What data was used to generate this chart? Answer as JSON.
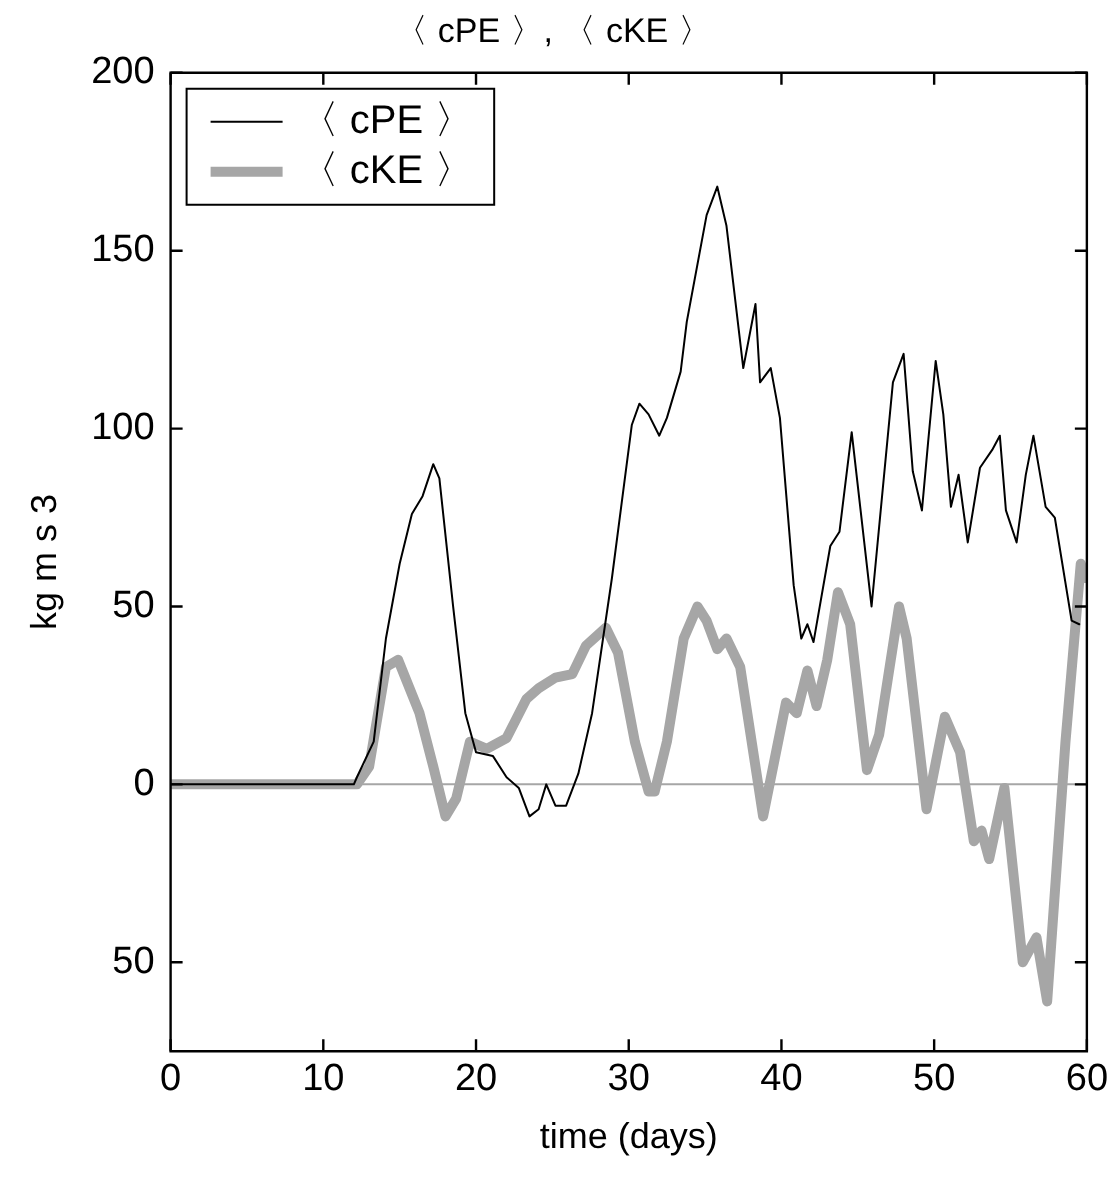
{
  "chart_data": {
    "type": "line",
    "title": "〈 cPE 〉, 〈 cKE 〉",
    "xlabel": "time (days)",
    "ylabel": "kg m s 3",
    "xlim": [
      0,
      60
    ],
    "xticks": [
      0,
      10,
      20,
      30,
      40,
      50,
      60
    ],
    "ylim": [
      -75,
      200
    ],
    "yticks": [
      {
        "value": -50,
        "label": "50"
      },
      0,
      50,
      100,
      150,
      200
    ],
    "grid": false,
    "legend": "top left",
    "marker": "none",
    "line_style": "solid",
    "ref_lines": [
      {
        "axis": "y",
        "value": 0,
        "color": "#a6a6a6"
      }
    ],
    "series": [
      {
        "name": "〈 cPE 〉",
        "color": "#000000",
        "x": [
          0,
          12,
          12.2,
          13.3,
          14.1,
          15,
          15.8,
          16.5,
          17.2,
          17.6,
          18.5,
          19.3,
          20,
          21.1,
          22,
          22.8,
          23.5,
          24.1,
          24.6,
          25.2,
          25.9,
          26.7,
          27.6,
          28.9,
          30.2,
          30.7,
          31.3,
          32,
          32.5,
          33.4,
          33.8,
          35.1,
          35.8,
          36.4,
          37.5,
          38.3,
          38.6,
          39.3,
          39.9,
          40.8,
          41.3,
          41.7,
          42.1,
          43.2,
          43.8,
          44.6,
          45.9,
          47.3,
          48,
          48.6,
          49.2,
          49.6,
          50.1,
          50.6,
          51.1,
          51.6,
          52.2,
          53,
          53.8,
          54.3,
          54.7,
          55.4,
          56,
          56.5,
          57.3,
          57.9,
          59,
          59.5
        ],
        "values": [
          0,
          0,
          2,
          12,
          41,
          62,
          76,
          81,
          90,
          86,
          50,
          20,
          9,
          8,
          2,
          -1,
          -9,
          -7,
          0,
          -6,
          -6,
          3,
          20,
          58,
          101,
          107,
          104,
          98,
          103,
          116,
          130,
          160,
          168,
          157,
          117,
          135,
          113,
          117,
          103,
          56,
          41,
          45,
          40,
          67,
          71,
          99,
          50,
          113,
          121,
          88,
          77,
          96,
          119,
          104,
          78,
          87,
          68,
          89,
          94,
          98,
          77,
          68,
          87,
          98,
          78,
          75,
          46,
          45
        ]
      },
      {
        "name": "〈 cKE 〉",
        "color": "#a6a6a6",
        "x": [
          0,
          12.2,
          13,
          14.1,
          14.9,
          16.3,
          17.2,
          18,
          18.7,
          19.6,
          20.7,
          22,
          23.3,
          24.1,
          25.2,
          26.3,
          27.2,
          28.5,
          29.3,
          30.4,
          31.3,
          31.7,
          32.5,
          33.6,
          34.5,
          35.1,
          35.8,
          36.4,
          37.3,
          38.8,
          40.3,
          41,
          41.7,
          42.3,
          43,
          43.7,
          44.5,
          45.6,
          46.4,
          47.7,
          48.2,
          49.5,
          50.7,
          51.7,
          52.6,
          53.1,
          53.6,
          54.6,
          55.8,
          56.7,
          57.4,
          58.6,
          59.6,
          59.9
        ],
        "values": [
          0,
          0,
          5,
          33,
          35,
          20,
          5,
          -9,
          -4,
          12,
          10,
          13,
          24,
          27,
          30,
          31,
          39,
          44,
          37,
          12,
          -2,
          -2,
          12,
          41,
          50,
          46,
          38,
          41,
          33,
          -9,
          23,
          20,
          32,
          22,
          35,
          54,
          45,
          4,
          14,
          50,
          41,
          -7,
          19,
          9,
          -16,
          -13,
          -21,
          -1,
          -50,
          -43,
          -61,
          12,
          62,
          58
        ]
      }
    ]
  }
}
